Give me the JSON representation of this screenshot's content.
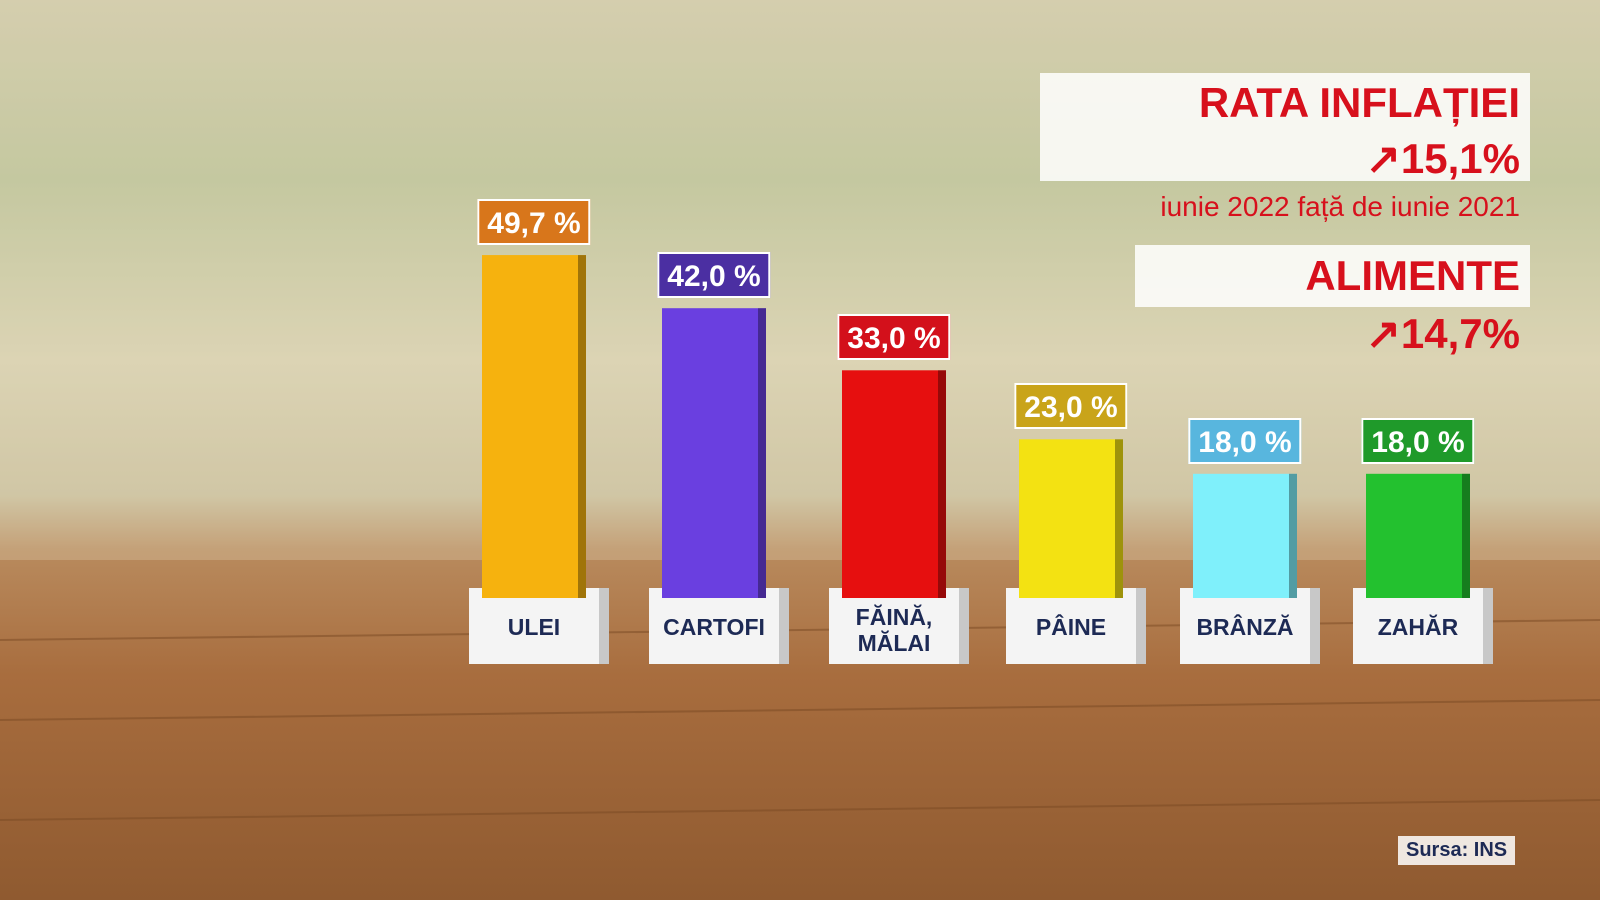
{
  "chart_data": {
    "type": "bar",
    "headline": {
      "labels": [
        "RATA INFLAȚIEI",
        "ALIMENTE"
      ],
      "values": [
        15.1,
        14.7
      ],
      "value_labels": [
        "15,1%",
        "14,7%"
      ],
      "subtitle": "iunie 2022 față de iunie 2021"
    },
    "categories": [
      "ULEI",
      "CARTOFI",
      "FĂINĂ, MĂLAI",
      "PÂINE",
      "BRÂNZĂ",
      "ZAHĂR"
    ],
    "values": [
      49.7,
      42.0,
      33.0,
      23.0,
      18.0,
      18.0
    ],
    "value_labels": [
      "49,7 %",
      "42,0 %",
      "33,0 %",
      "23,0 %",
      "18,0 %",
      "18,0 %"
    ],
    "colors": [
      "#f6b20e",
      "#6a3fe0",
      "#e60f0f",
      "#f3e212",
      "#7ff0fb",
      "#23c12f"
    ],
    "label_colors": [
      "#d8761b",
      "#4b2fa2",
      "#d3101b",
      "#c9a41a",
      "#58b6de",
      "#1f9a2a"
    ],
    "source": "Sursa: INS"
  }
}
